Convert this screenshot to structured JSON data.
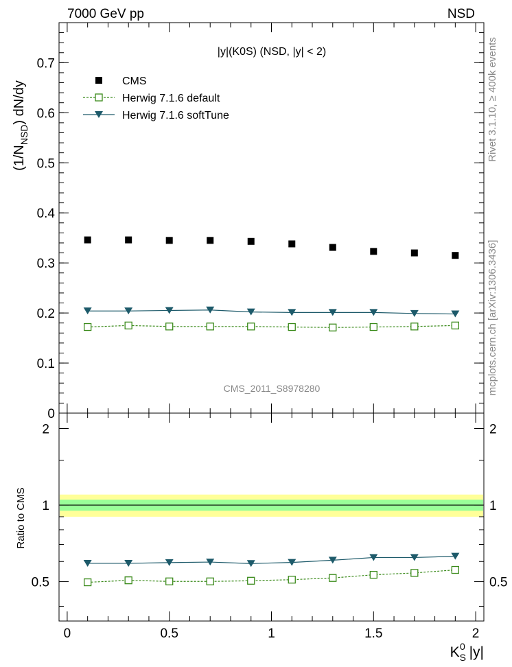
{
  "header": {
    "left": "7000 GeV pp",
    "right": "NSD"
  },
  "side_text": {
    "rivet": "Rivet 3.1.10, ≥ 400k events",
    "mcplots": "mcplots.cern.ch [arXiv:1306.3436]"
  },
  "watermark": "CMS_2011_S8978280",
  "chart_data": {
    "type": "scatter",
    "title": "|y|(K0S) (NSD, |y| < 2)",
    "ylabel": "(1/N_NSD) dN/dy",
    "ylabel_main": "(1/N",
    "ylabel_sub": "NSD",
    "ylabel_tail": ") dN/dy",
    "xlabel": "K_S^0 |y|",
    "xlabel_main": "K",
    "xlabel_sub": "S",
    "xlabel_sup": "0",
    "xlabel_tail": " |y|",
    "xlim": [
      -0.04,
      2.04
    ],
    "ylim": [
      0,
      0.78
    ],
    "x_ticks": [
      "0",
      "0.5",
      "1",
      "1.5",
      "2"
    ],
    "y_ticks": [
      "0",
      "0.1",
      "0.2",
      "0.3",
      "0.4",
      "0.5",
      "0.6",
      "0.7"
    ],
    "legend_position": "top-left",
    "x": [
      0.1,
      0.3,
      0.5,
      0.7,
      0.9,
      1.1,
      1.3,
      1.5,
      1.7,
      1.9
    ],
    "series": [
      {
        "name": "CMS",
        "color": "#000000",
        "marker": "filled-square",
        "values": [
          0.346,
          0.346,
          0.345,
          0.345,
          0.343,
          0.338,
          0.331,
          0.323,
          0.32,
          0.315
        ]
      },
      {
        "name": "Herwig 7.1.6 default",
        "color": "#3a8a1a",
        "marker": "open-square",
        "line": "dashed",
        "values": [
          0.172,
          0.175,
          0.173,
          0.173,
          0.173,
          0.172,
          0.171,
          0.172,
          0.173,
          0.175
        ]
      },
      {
        "name": "Herwig 7.1.6 softTune",
        "color": "#1d5a6a",
        "marker": "filled-triangle-down",
        "line": "solid",
        "values": [
          0.204,
          0.204,
          0.205,
          0.206,
          0.202,
          0.201,
          0.201,
          0.201,
          0.199,
          0.198
        ]
      }
    ],
    "ratio": {
      "ylabel": "Ratio to CMS",
      "ylim": [
        0.35,
        2.3
      ],
      "y_ticks": [
        "0.5",
        "1",
        "2"
      ],
      "band_inner": [
        0.95,
        1.05
      ],
      "band_outer": [
        0.9,
        1.1
      ],
      "band_inner_color": "#99ff99",
      "band_outer_color": "#ffff99",
      "series": [
        {
          "name": "Herwig 7.1.6 default",
          "values": [
            0.497,
            0.506,
            0.501,
            0.501,
            0.504,
            0.509,
            0.517,
            0.532,
            0.541,
            0.556
          ]
        },
        {
          "name": "Herwig 7.1.6 softTune",
          "values": [
            0.59,
            0.59,
            0.594,
            0.597,
            0.589,
            0.595,
            0.607,
            0.622,
            0.622,
            0.629
          ]
        }
      ]
    }
  }
}
